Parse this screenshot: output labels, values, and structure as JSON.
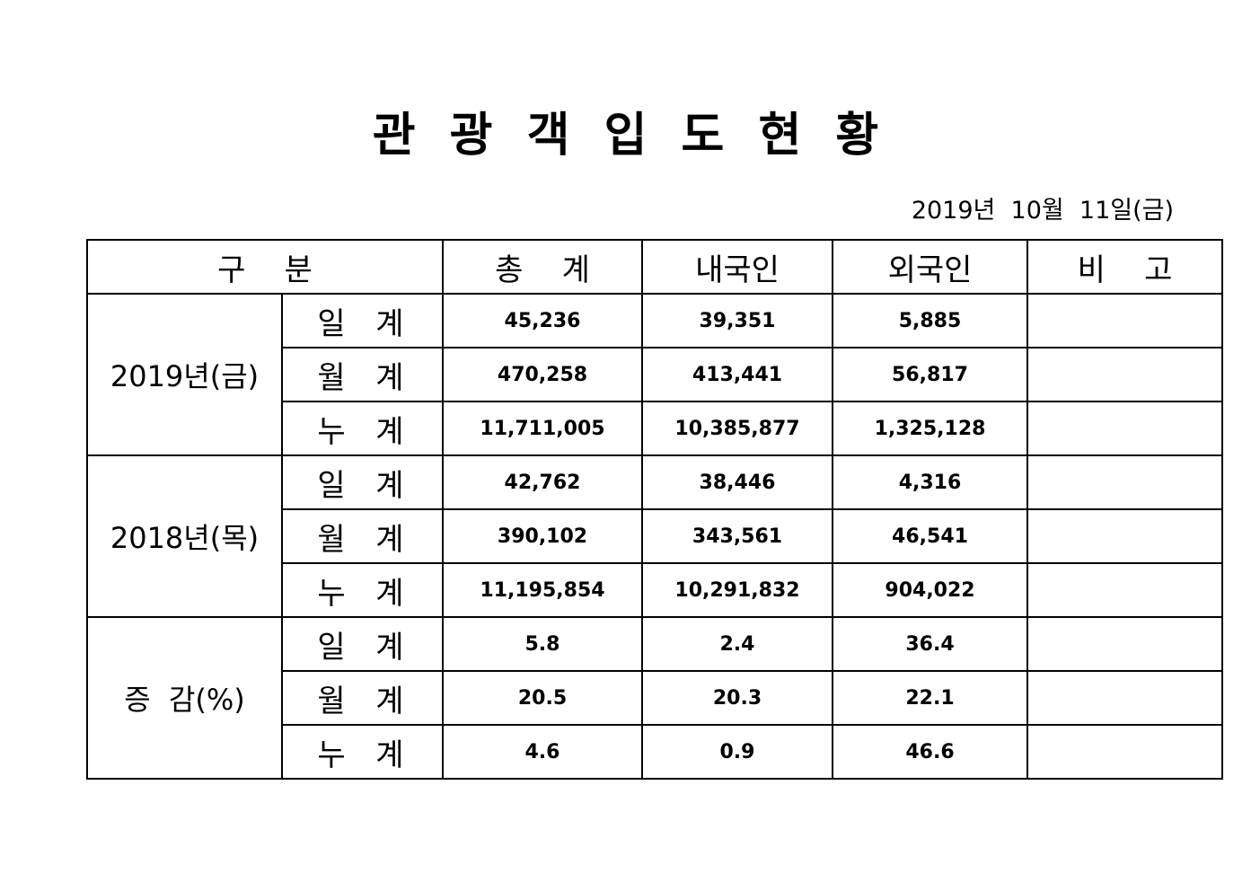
{
  "title": "관 광 객 입 도 현 황",
  "date": "2019년  10월  11일(금)",
  "table": {
    "header": [
      "구    분",
      "총    계",
      "내국인",
      "외국인",
      "비    고"
    ],
    "groups": [
      {
        "label": "2019년(금)",
        "rows": [
          {
            "label": "일  계",
            "values": [
              "45,236",
              "39,351",
              "5,885"
            ]
          },
          {
            "label": "월  계",
            "values": [
              "470,258",
              "413,441",
              "56,817"
            ]
          },
          {
            "label": "누  계",
            "values": [
              "11,711,005",
              "10,385,877",
              "1,325,128"
            ]
          }
        ]
      },
      {
        "label": "2018년(목)",
        "rows": [
          {
            "label": "일  계",
            "values": [
              "42,762",
              "38,446",
              "4,316"
            ]
          },
          {
            "label": "월  계",
            "values": [
              "390,102",
              "343,561",
              "46,541"
            ]
          },
          {
            "label": "누  계",
            "values": [
              "11,195,854",
              "10,291,832",
              "904,022"
            ]
          }
        ]
      },
      {
        "label": "증  감(%)",
        "rows": [
          {
            "label": "일  계",
            "values": [
              "5.8",
              "2.4",
              "36.4"
            ]
          },
          {
            "label": "월  계",
            "values": [
              "20.5",
              "20.3",
              "22.1"
            ]
          },
          {
            "label": "누  계",
            "values": [
              "4.6",
              "0.9",
              "46.6"
            ]
          }
        ]
      }
    ]
  }
}
